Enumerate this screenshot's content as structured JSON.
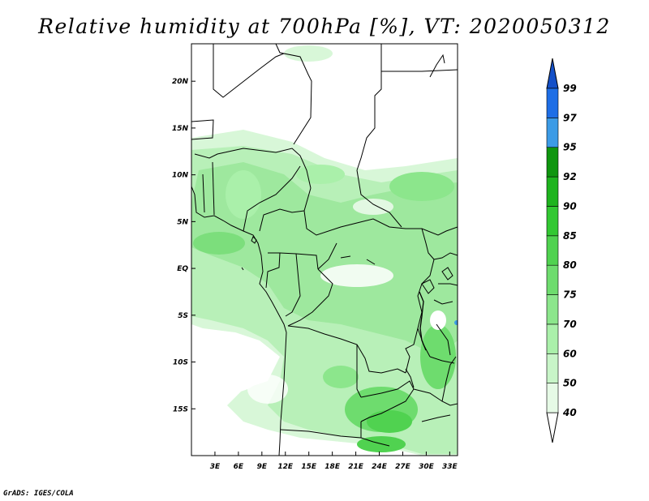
{
  "title": "Relative humidity at 700hPa [%], VT: 2020050312",
  "credit": "GrADS: IGES/COLA",
  "map": {
    "lon_range": [
      0,
      34
    ],
    "lat_range": [
      -20,
      24
    ],
    "x_ticks": [
      {
        "value": 3,
        "label": "3E"
      },
      {
        "value": 6,
        "label": "6E"
      },
      {
        "value": 9,
        "label": "9E"
      },
      {
        "value": 12,
        "label": "12E"
      },
      {
        "value": 15,
        "label": "15E"
      },
      {
        "value": 18,
        "label": "18E"
      },
      {
        "value": 21,
        "label": "21E"
      },
      {
        "value": 24,
        "label": "24E"
      },
      {
        "value": 27,
        "label": "27E"
      },
      {
        "value": 30,
        "label": "30E"
      },
      {
        "value": 33,
        "label": "33E"
      }
    ],
    "y_ticks": [
      {
        "value": 20,
        "label": "20N"
      },
      {
        "value": 15,
        "label": "15N"
      },
      {
        "value": 10,
        "label": "10N"
      },
      {
        "value": 5,
        "label": "5N"
      },
      {
        "value": 0,
        "label": "EQ"
      },
      {
        "value": -5,
        "label": "5S"
      },
      {
        "value": -10,
        "label": "10S"
      },
      {
        "value": -15,
        "label": "15S"
      }
    ]
  },
  "colorbar": {
    "levels": [
      "40",
      "50",
      "60",
      "70",
      "75",
      "80",
      "85",
      "90",
      "92",
      "95",
      "97",
      "99"
    ],
    "colors": [
      "#e6fae6",
      "#c8f5c8",
      "#aaf0aa",
      "#8ce68c",
      "#6edc6e",
      "#50d250",
      "#32c832",
      "#1eb41e",
      "#0f960f",
      "#3c9be6",
      "#1e6ee6",
      "#1450c8"
    ],
    "under_color": "#ffffff",
    "over_color": "#1450c8"
  }
}
